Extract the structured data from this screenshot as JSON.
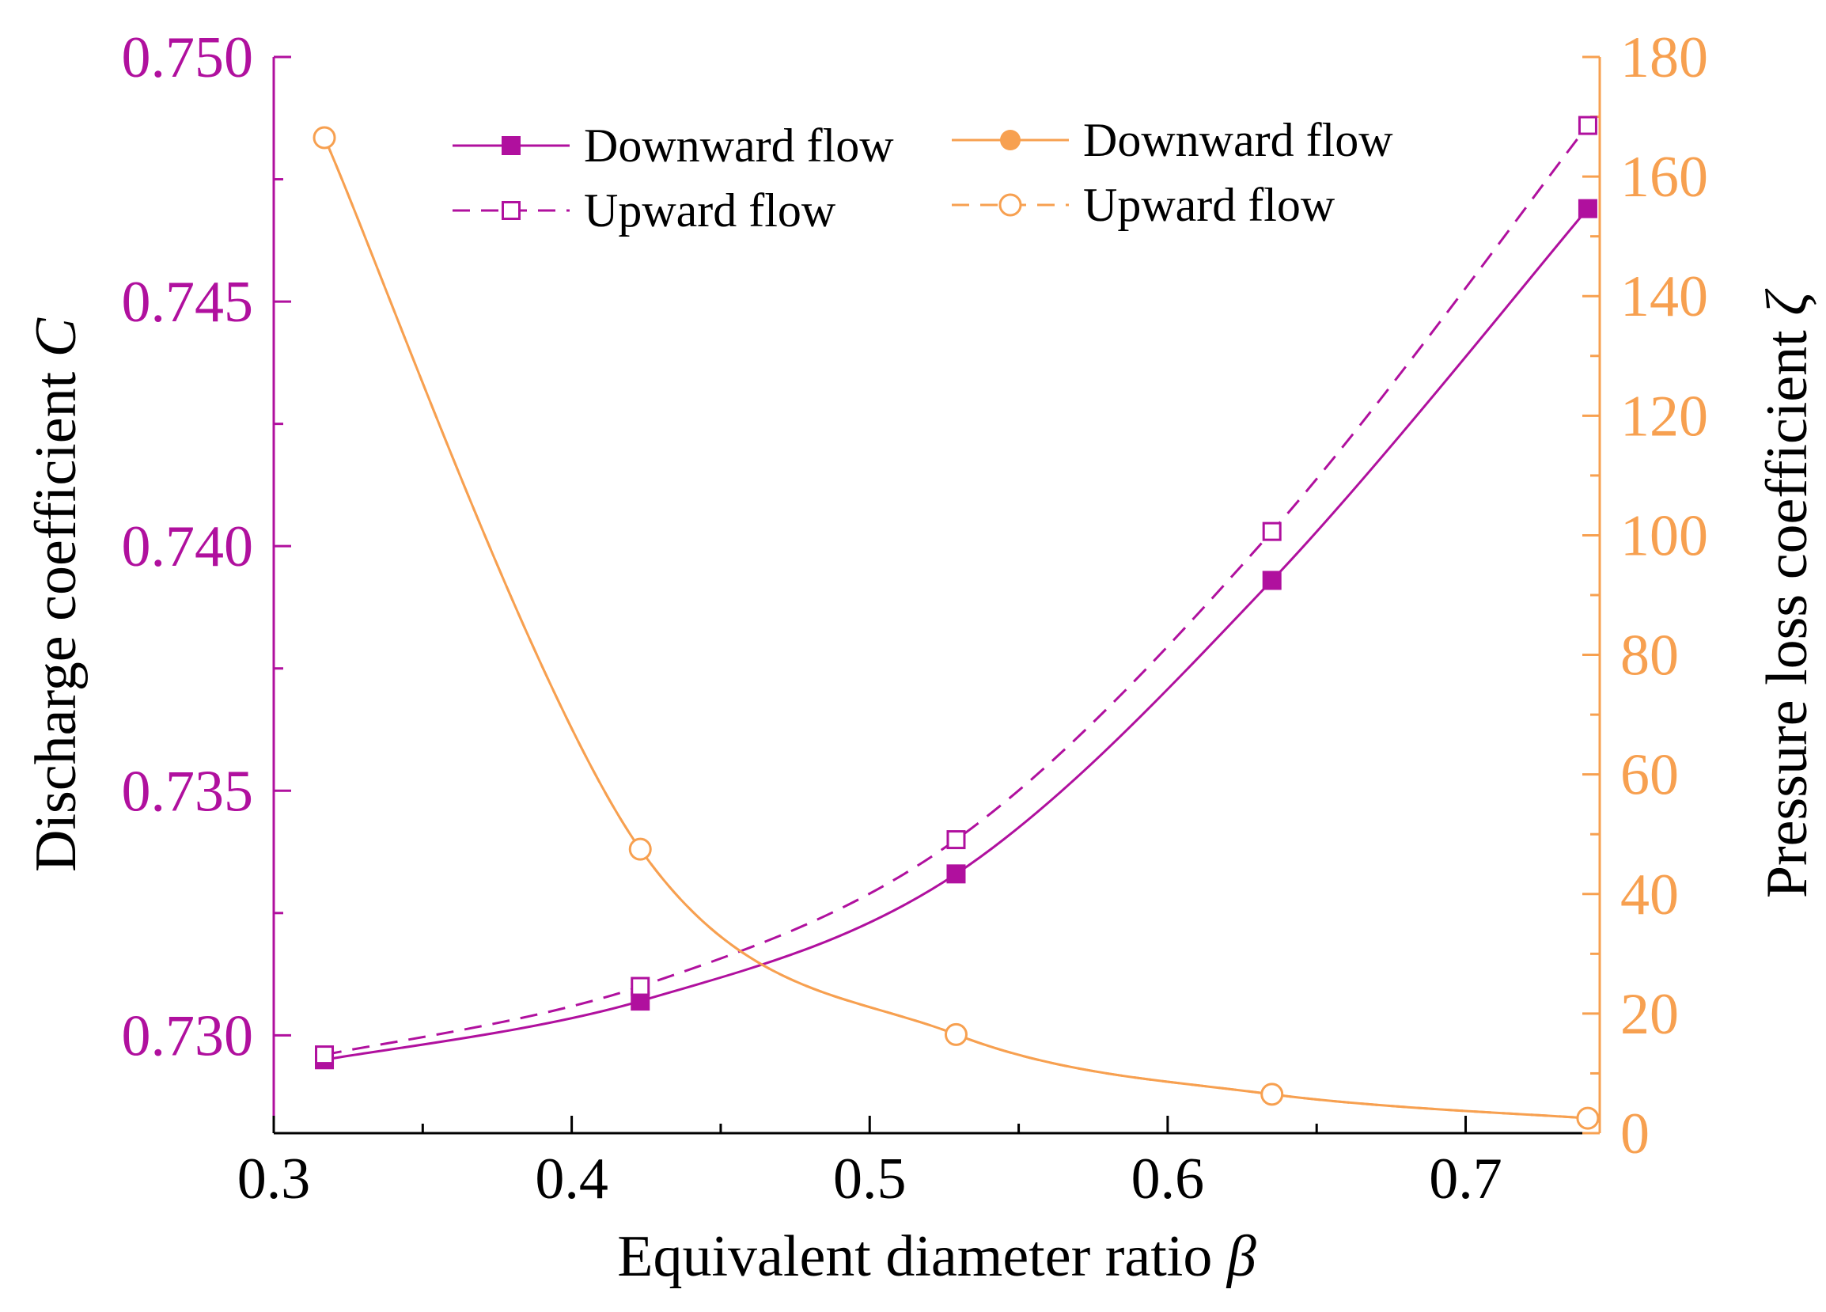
{
  "chart_data": {
    "type": "line",
    "xlabel": "Equivalent diameter ratio",
    "xlabel_symbol": "β",
    "ylabel_left": "Discharge coefficient",
    "ylabel_left_symbol": "C",
    "ylabel_right": "Pressure loss coefficient",
    "ylabel_right_symbol": "ζ",
    "xlim": [
      0.3,
      0.745
    ],
    "ylim_left": [
      0.728,
      0.75
    ],
    "ylim_right": [
      0,
      180
    ],
    "x_ticks": [
      "0.3",
      "0.4",
      "0.5",
      "0.6",
      "0.7"
    ],
    "y_left_ticks": [
      "0.730",
      "0.735",
      "0.740",
      "0.745",
      "0.750"
    ],
    "y_right_ticks": [
      "0",
      "20",
      "40",
      "60",
      "80",
      "100",
      "120",
      "140",
      "160",
      "180"
    ],
    "x": [
      0.317,
      0.423,
      0.529,
      0.635,
      0.741
    ],
    "series": [
      {
        "name": "Downward flow",
        "axis": "left",
        "marker": "filled-square",
        "line": "solid",
        "color": "#b0109e",
        "values": [
          0.7295,
          0.7307,
          0.7333,
          0.7393,
          0.7469
        ]
      },
      {
        "name": "Upward flow",
        "axis": "left",
        "marker": "open-square",
        "line": "dashed",
        "color": "#b0109e",
        "values": [
          0.7296,
          0.731,
          0.734,
          0.7403,
          0.7486
        ]
      },
      {
        "name": "Downward flow",
        "axis": "right",
        "marker": "filled-circle",
        "line": "solid",
        "color": "#f7a050",
        "values": [
          166.5,
          47.5,
          16.5,
          6.5,
          2.5
        ]
      },
      {
        "name": "Upward flow",
        "axis": "right",
        "marker": "open-circle",
        "line": "dashed",
        "color": "#f7a050",
        "values": [
          166.5,
          47.5,
          16.5,
          6.5,
          2.5
        ]
      }
    ],
    "legend_position": "top",
    "colors": {
      "left_axis": "#b0109e",
      "right_axis": "#f7a050",
      "bottom_axis": "#000000"
    }
  }
}
